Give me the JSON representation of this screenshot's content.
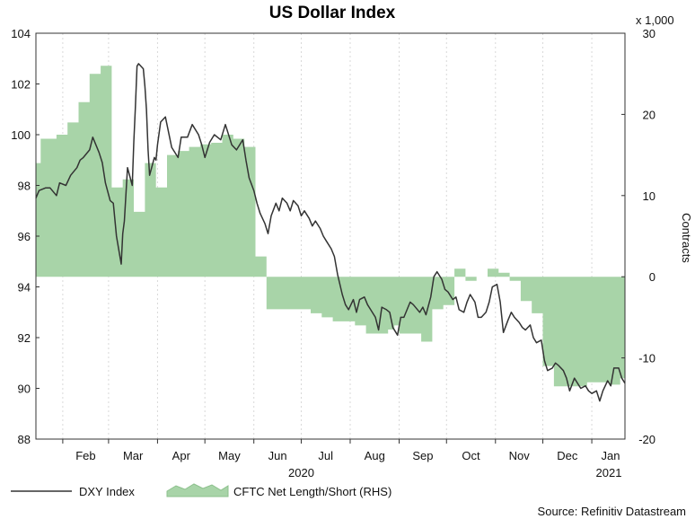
{
  "chart_data": {
    "type": "line",
    "title": "US Dollar Index",
    "source": "Source: Refinitiv Datastream",
    "x_months": [
      "Feb",
      "Mar",
      "Apr",
      "May",
      "Jun",
      "Jul",
      "Aug",
      "Sep",
      "Oct",
      "Nov",
      "Dec",
      "Jan"
    ],
    "x_years": [
      "2020",
      "2021"
    ],
    "x_range": [
      "2020-01-15",
      "2021-01-22"
    ],
    "left_axis": {
      "min": 88,
      "max": 104,
      "ticks": [
        "104",
        "102",
        "100",
        "98",
        "96",
        "94",
        "92",
        "90",
        "88"
      ]
    },
    "right_axis": {
      "label": "Contracts",
      "multiplier": "x 1,000",
      "min": -20,
      "max": 30,
      "ticks": [
        "30",
        "20",
        "10",
        "0",
        "-10",
        "-20"
      ]
    },
    "grid": "vertical dashed at month midpoints",
    "legend": {
      "placement": "bottom-left",
      "entries": [
        "DXY Index",
        "CFTC Net Length/Short (RHS)"
      ]
    },
    "colors": {
      "line": "#333333",
      "area": "#a8d4a8",
      "area_edge": "#8cc08c"
    },
    "series": [
      {
        "name": "DXY Index",
        "axis": "left",
        "style": "line",
        "points": [
          [
            "2020-01-15",
            97.5
          ],
          [
            "2020-01-17",
            97.8
          ],
          [
            "2020-01-21",
            97.9
          ],
          [
            "2020-01-24",
            97.9
          ],
          [
            "2020-01-28",
            97.6
          ],
          [
            "2020-01-30",
            98.1
          ],
          [
            "2020-02-03",
            98.0
          ],
          [
            "2020-02-06",
            98.4
          ],
          [
            "2020-02-10",
            98.7
          ],
          [
            "2020-02-12",
            99.0
          ],
          [
            "2020-02-14",
            99.1
          ],
          [
            "2020-02-18",
            99.4
          ],
          [
            "2020-02-20",
            99.9
          ],
          [
            "2020-02-24",
            99.3
          ],
          [
            "2020-02-26",
            98.9
          ],
          [
            "2020-02-28",
            98.1
          ],
          [
            "2020-03-02",
            97.4
          ],
          [
            "2020-03-04",
            97.3
          ],
          [
            "2020-03-06",
            96.0
          ],
          [
            "2020-03-09",
            94.9
          ],
          [
            "2020-03-10",
            96.1
          ],
          [
            "2020-03-11",
            96.6
          ],
          [
            "2020-03-13",
            98.7
          ],
          [
            "2020-03-16",
            98.0
          ],
          [
            "2020-03-17",
            99.7
          ],
          [
            "2020-03-18",
            101.1
          ],
          [
            "2020-03-19",
            102.7
          ],
          [
            "2020-03-20",
            102.8
          ],
          [
            "2020-03-23",
            102.6
          ],
          [
            "2020-03-24",
            101.9
          ],
          [
            "2020-03-25",
            101.0
          ],
          [
            "2020-03-26",
            99.4
          ],
          [
            "2020-03-27",
            98.4
          ],
          [
            "2020-03-30",
            99.1
          ],
          [
            "2020-03-31",
            99.0
          ],
          [
            "2020-04-01",
            99.6
          ],
          [
            "2020-04-03",
            100.5
          ],
          [
            "2020-04-06",
            100.7
          ],
          [
            "2020-04-08",
            100.1
          ],
          [
            "2020-04-10",
            99.5
          ],
          [
            "2020-04-14",
            99.1
          ],
          [
            "2020-04-16",
            99.9
          ],
          [
            "2020-04-20",
            99.9
          ],
          [
            "2020-04-23",
            100.4
          ],
          [
            "2020-04-27",
            100.0
          ],
          [
            "2020-04-29",
            99.6
          ],
          [
            "2020-05-01",
            99.1
          ],
          [
            "2020-05-04",
            99.7
          ],
          [
            "2020-05-07",
            100.0
          ],
          [
            "2020-05-11",
            99.8
          ],
          [
            "2020-05-14",
            100.4
          ],
          [
            "2020-05-18",
            99.6
          ],
          [
            "2020-05-21",
            99.4
          ],
          [
            "2020-05-25",
            99.8
          ],
          [
            "2020-05-27",
            99.0
          ],
          [
            "2020-05-29",
            98.3
          ],
          [
            "2020-06-01",
            97.8
          ],
          [
            "2020-06-03",
            97.3
          ],
          [
            "2020-06-05",
            96.9
          ],
          [
            "2020-06-08",
            96.5
          ],
          [
            "2020-06-10",
            96.1
          ],
          [
            "2020-06-12",
            96.8
          ],
          [
            "2020-06-15",
            97.3
          ],
          [
            "2020-06-17",
            97.0
          ],
          [
            "2020-06-19",
            97.5
          ],
          [
            "2020-06-22",
            97.3
          ],
          [
            "2020-06-24",
            97.0
          ],
          [
            "2020-06-26",
            97.4
          ],
          [
            "2020-06-29",
            97.2
          ],
          [
            "2020-07-01",
            96.8
          ],
          [
            "2020-07-03",
            97.0
          ],
          [
            "2020-07-06",
            96.7
          ],
          [
            "2020-07-08",
            96.4
          ],
          [
            "2020-07-10",
            96.6
          ],
          [
            "2020-07-13",
            96.3
          ],
          [
            "2020-07-15",
            96.0
          ],
          [
            "2020-07-17",
            95.8
          ],
          [
            "2020-07-20",
            95.5
          ],
          [
            "2020-07-22",
            95.2
          ],
          [
            "2020-07-24",
            94.5
          ],
          [
            "2020-07-27",
            93.7
          ],
          [
            "2020-07-29",
            93.3
          ],
          [
            "2020-07-31",
            93.1
          ],
          [
            "2020-08-03",
            93.5
          ],
          [
            "2020-08-05",
            93.0
          ],
          [
            "2020-08-07",
            93.5
          ],
          [
            "2020-08-10",
            93.6
          ],
          [
            "2020-08-12",
            93.3
          ],
          [
            "2020-08-14",
            93.1
          ],
          [
            "2020-08-17",
            92.8
          ],
          [
            "2020-08-19",
            92.3
          ],
          [
            "2020-08-21",
            93.2
          ],
          [
            "2020-08-24",
            93.1
          ],
          [
            "2020-08-26",
            93.0
          ],
          [
            "2020-08-28",
            92.4
          ],
          [
            "2020-08-31",
            92.1
          ],
          [
            "2020-09-02",
            92.8
          ],
          [
            "2020-09-04",
            92.8
          ],
          [
            "2020-09-08",
            93.4
          ],
          [
            "2020-09-10",
            93.3
          ],
          [
            "2020-09-14",
            93.0
          ],
          [
            "2020-09-16",
            93.2
          ],
          [
            "2020-09-18",
            92.9
          ],
          [
            "2020-09-21",
            93.6
          ],
          [
            "2020-09-23",
            94.4
          ],
          [
            "2020-09-25",
            94.6
          ],
          [
            "2020-09-28",
            94.3
          ],
          [
            "2020-09-30",
            93.9
          ],
          [
            "2020-10-02",
            93.8
          ],
          [
            "2020-10-05",
            93.5
          ],
          [
            "2020-10-07",
            93.6
          ],
          [
            "2020-10-09",
            93.1
          ],
          [
            "2020-10-12",
            93.0
          ],
          [
            "2020-10-14",
            93.4
          ],
          [
            "2020-10-16",
            93.7
          ],
          [
            "2020-10-19",
            93.4
          ],
          [
            "2020-10-21",
            92.8
          ],
          [
            "2020-10-23",
            92.8
          ],
          [
            "2020-10-26",
            93.0
          ],
          [
            "2020-10-28",
            93.4
          ],
          [
            "2020-10-30",
            94.0
          ],
          [
            "2020-11-02",
            94.1
          ],
          [
            "2020-11-04",
            93.4
          ],
          [
            "2020-11-06",
            92.2
          ],
          [
            "2020-11-09",
            92.7
          ],
          [
            "2020-11-11",
            93.0
          ],
          [
            "2020-11-13",
            92.8
          ],
          [
            "2020-11-16",
            92.6
          ],
          [
            "2020-11-18",
            92.4
          ],
          [
            "2020-11-20",
            92.3
          ],
          [
            "2020-11-23",
            92.5
          ],
          [
            "2020-11-25",
            92.0
          ],
          [
            "2020-11-27",
            91.8
          ],
          [
            "2020-11-30",
            91.9
          ],
          [
            "2020-12-02",
            91.1
          ],
          [
            "2020-12-04",
            90.7
          ],
          [
            "2020-12-07",
            90.8
          ],
          [
            "2020-12-09",
            91.0
          ],
          [
            "2020-12-11",
            90.9
          ],
          [
            "2020-12-14",
            90.7
          ],
          [
            "2020-12-16",
            90.4
          ],
          [
            "2020-12-18",
            89.9
          ],
          [
            "2020-12-21",
            90.4
          ],
          [
            "2020-12-23",
            90.2
          ],
          [
            "2020-12-25",
            90.0
          ],
          [
            "2020-12-28",
            90.1
          ],
          [
            "2020-12-30",
            89.9
          ],
          [
            "2021-01-01",
            89.8
          ],
          [
            "2021-01-04",
            89.9
          ],
          [
            "2021-01-06",
            89.5
          ],
          [
            "2021-01-08",
            89.9
          ],
          [
            "2021-01-11",
            90.3
          ],
          [
            "2021-01-13",
            90.1
          ],
          [
            "2021-01-15",
            90.8
          ],
          [
            "2021-01-18",
            90.8
          ],
          [
            "2021-01-20",
            90.4
          ],
          [
            "2021-01-22",
            90.2
          ]
        ]
      },
      {
        "name": "CFTC Net Length/Short (RHS)",
        "axis": "right",
        "style": "step-area",
        "points": [
          [
            "2020-01-15",
            14.0
          ],
          [
            "2020-01-18",
            17.0
          ],
          [
            "2020-01-28",
            17.5
          ],
          [
            "2020-02-04",
            19.0
          ],
          [
            "2020-02-11",
            21.5
          ],
          [
            "2020-02-18",
            25.0
          ],
          [
            "2020-02-25",
            26.0
          ],
          [
            "2020-03-03",
            11.0
          ],
          [
            "2020-03-10",
            12.0
          ],
          [
            "2020-03-17",
            8.0
          ],
          [
            "2020-03-24",
            14.0
          ],
          [
            "2020-03-31",
            11.0
          ],
          [
            "2020-04-07",
            15.0
          ],
          [
            "2020-04-14",
            15.5
          ],
          [
            "2020-04-21",
            16.0
          ],
          [
            "2020-04-28",
            16.3
          ],
          [
            "2020-05-05",
            16.5
          ],
          [
            "2020-05-12",
            17.5
          ],
          [
            "2020-05-19",
            17.0
          ],
          [
            "2020-05-26",
            16.0
          ],
          [
            "2020-06-02",
            2.5
          ],
          [
            "2020-06-09",
            -4.0
          ],
          [
            "2020-06-16",
            -4.0
          ],
          [
            "2020-06-23",
            -4.0
          ],
          [
            "2020-06-30",
            -4.0
          ],
          [
            "2020-07-07",
            -4.5
          ],
          [
            "2020-07-14",
            -5.0
          ],
          [
            "2020-07-21",
            -5.5
          ],
          [
            "2020-07-28",
            -5.5
          ],
          [
            "2020-08-04",
            -6.0
          ],
          [
            "2020-08-11",
            -7.0
          ],
          [
            "2020-08-18",
            -7.0
          ],
          [
            "2020-08-25",
            -6.5
          ],
          [
            "2020-08-29",
            -6.0
          ],
          [
            "2020-09-01",
            -7.0
          ],
          [
            "2020-09-08",
            -7.0
          ],
          [
            "2020-09-15",
            -8.0
          ],
          [
            "2020-09-22",
            -4.0
          ],
          [
            "2020-09-29",
            -3.5
          ],
          [
            "2020-10-06",
            1.0
          ],
          [
            "2020-10-13",
            -0.5
          ],
          [
            "2020-10-20",
            0.0
          ],
          [
            "2020-10-27",
            1.0
          ],
          [
            "2020-11-03",
            0.5
          ],
          [
            "2020-11-10",
            -0.5
          ],
          [
            "2020-11-17",
            -3.0
          ],
          [
            "2020-11-24",
            -4.5
          ],
          [
            "2020-12-01",
            -11.0
          ],
          [
            "2020-12-08",
            -13.5
          ],
          [
            "2020-12-15",
            -13.5
          ],
          [
            "2020-12-22",
            -13.5
          ],
          [
            "2020-12-29",
            -13.0
          ],
          [
            "2021-01-05",
            -13.0
          ],
          [
            "2021-01-12",
            -13.3
          ],
          [
            "2021-01-19",
            -12.5
          ],
          [
            "2021-01-22",
            -13.0
          ]
        ]
      }
    ]
  }
}
